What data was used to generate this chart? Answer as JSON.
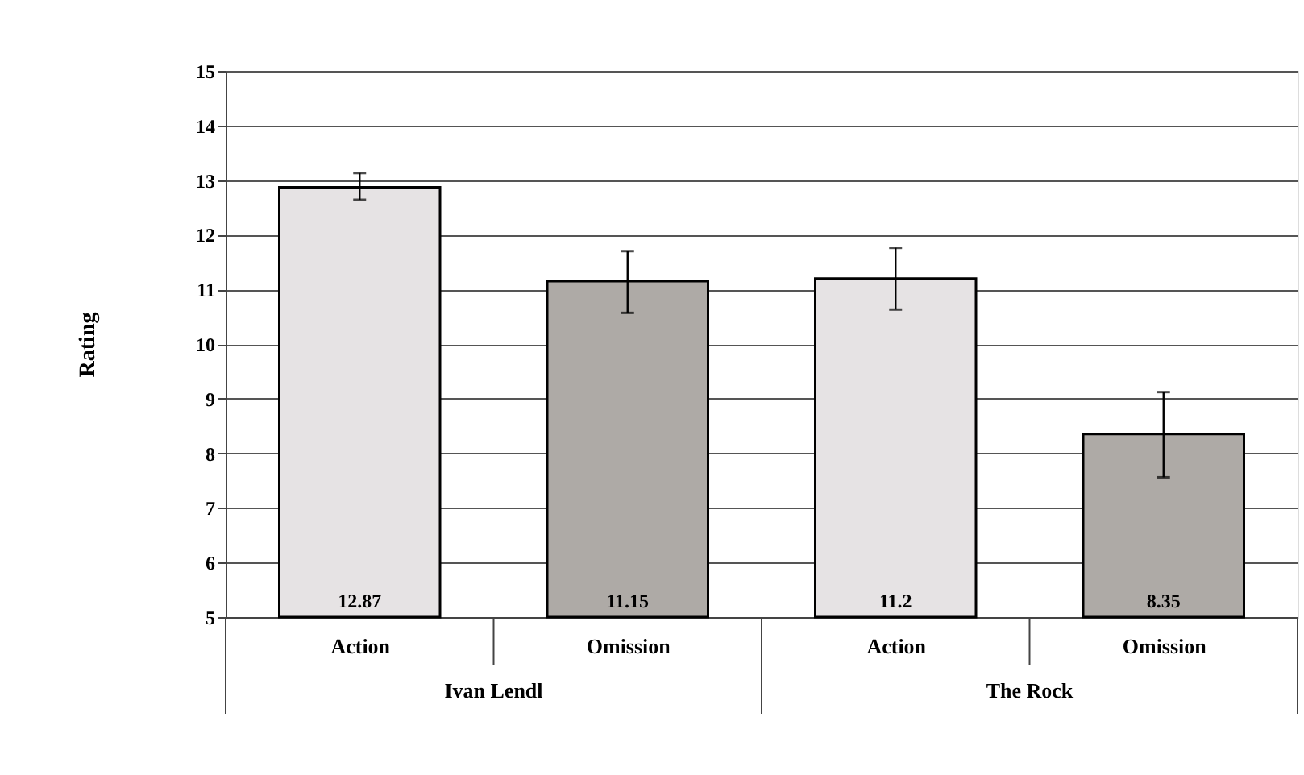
{
  "chart_data": {
    "type": "bar",
    "ylabel": "Rating",
    "categories": [
      "Action",
      "Omission",
      "Action",
      "Omission"
    ],
    "values": [
      12.87,
      11.15,
      11.2,
      8.35
    ],
    "colors": [
      "#e6e3e4",
      "#aeaaa6",
      "#e6e3e4",
      "#aeaaa6"
    ],
    "errors": [
      [
        12.64,
        13.13
      ],
      [
        10.57,
        11.7
      ],
      [
        10.63,
        11.76
      ],
      [
        7.56,
        9.12
      ]
    ],
    "data_labels": true,
    "annotations": [
      "Ivan Lendl",
      "The Rock"
    ],
    "ylim": [
      5,
      15
    ],
    "yticks": [
      5,
      6,
      7,
      8,
      9,
      10,
      11,
      12,
      13,
      14,
      15
    ],
    "grid": "y"
  }
}
